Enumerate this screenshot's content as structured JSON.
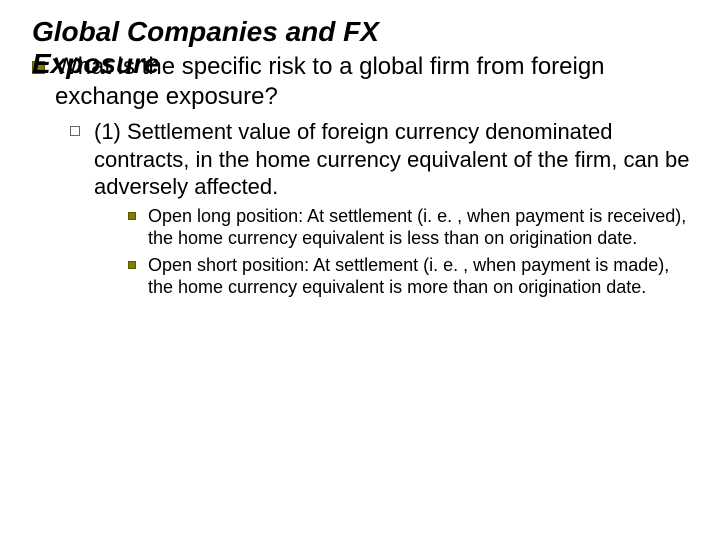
{
  "title": {
    "line1": "Global Companies and FX",
    "line2": "Exposure",
    "fontsize": 28,
    "color": "#000000"
  },
  "level1": {
    "text": "What is the specific risk to a global firm from foreign exchange exposure?",
    "fontsize": 24,
    "bullet_color": "#808000",
    "text_color": "#000000"
  },
  "level2": {
    "text": "(1) Settlement value of foreign currency denominated contracts, in the home currency equivalent of the firm, can be adversely affected.",
    "fontsize": 22,
    "bullet_border_color": "#666666",
    "text_color": "#000000"
  },
  "level3_items": [
    {
      "text": "Open long position:  At settlement (i. e. , when payment is received), the home currency equivalent is less than on origination date."
    },
    {
      "text": "Open short position:  At settlement (i. e. , when payment is made), the home currency equivalent is more than on origination date."
    }
  ],
  "level3_style": {
    "fontsize": 18,
    "bullet_color": "#808000",
    "text_color": "#000000"
  },
  "background_color": "#ffffff"
}
